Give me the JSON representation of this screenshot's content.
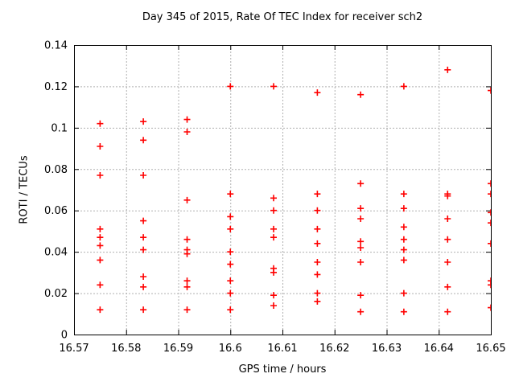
{
  "window": {
    "background": "#ffffff"
  },
  "colors": {
    "marker": "#ff0000",
    "grid": "#b0b0b0",
    "axis": "#000000",
    "text": "#000000",
    "background": "#ffffff"
  },
  "chart_data": {
    "type": "scatter",
    "title": "Day 345 of 2015, Rate Of TEC Index for receiver sch2",
    "xlabel": "GPS time / hours",
    "ylabel": "ROTI / TECUs",
    "xlim": [
      16.57,
      16.65
    ],
    "ylim": [
      0,
      0.14
    ],
    "grid": true,
    "legend": "none",
    "marker": {
      "shape": "plus",
      "color": "#ff0000",
      "size": 8
    },
    "x_ticks": [
      16.57,
      16.58,
      16.59,
      16.6,
      16.61,
      16.62,
      16.63,
      16.64,
      16.65
    ],
    "x_tick_labels": [
      "16.57",
      "16.58",
      "16.59",
      "16.6",
      "16.61",
      "16.62",
      "16.63",
      "16.64",
      "16.65"
    ],
    "y_ticks": [
      0,
      0.02,
      0.04,
      0.06,
      0.08,
      0.1,
      0.12,
      0.14
    ],
    "y_tick_labels": [
      "0",
      "0.02",
      "0.04",
      "0.06",
      "0.08",
      "0.1",
      "0.12",
      "0.14"
    ],
    "series": [
      {
        "name": "ROTI",
        "columns": [
          {
            "x": 16.575,
            "y": [
              0.102,
              0.091,
              0.077,
              0.051,
              0.047,
              0.043,
              0.036,
              0.024,
              0.012
            ]
          },
          {
            "x": 16.5833,
            "y": [
              0.103,
              0.094,
              0.077,
              0.055,
              0.047,
              0.041,
              0.028,
              0.023,
              0.012
            ]
          },
          {
            "x": 16.5917,
            "y": [
              0.104,
              0.098,
              0.065,
              0.046,
              0.041,
              0.039,
              0.026,
              0.023,
              0.012
            ]
          },
          {
            "x": 16.6,
            "y": [
              0.12,
              0.068,
              0.057,
              0.051,
              0.04,
              0.034,
              0.026,
              0.02,
              0.012
            ]
          },
          {
            "x": 16.6083,
            "y": [
              0.12,
              0.066,
              0.06,
              0.051,
              0.047,
              0.032,
              0.03,
              0.019,
              0.014
            ]
          },
          {
            "x": 16.6167,
            "y": [
              0.117,
              0.068,
              0.06,
              0.051,
              0.044,
              0.035,
              0.029,
              0.02,
              0.016
            ]
          },
          {
            "x": 16.625,
            "y": [
              0.116,
              0.073,
              0.061,
              0.056,
              0.045,
              0.042,
              0.035,
              0.019,
              0.011
            ]
          },
          {
            "x": 16.6333,
            "y": [
              0.12,
              0.068,
              0.061,
              0.052,
              0.046,
              0.041,
              0.036,
              0.02,
              0.011
            ]
          },
          {
            "x": 16.6417,
            "y": [
              0.128,
              0.068,
              0.067,
              0.056,
              0.046,
              0.035,
              0.023,
              0.011
            ]
          },
          {
            "x": 16.65,
            "y": [
              0.118,
              0.073,
              0.068,
              0.059,
              0.054,
              0.044,
              0.026,
              0.024,
              0.013
            ]
          }
        ]
      }
    ]
  }
}
